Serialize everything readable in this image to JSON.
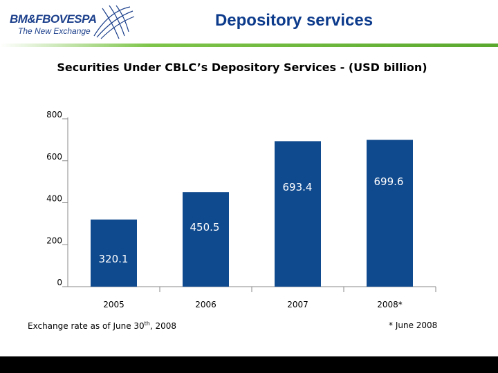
{
  "header": {
    "logo_name": "BM&FBOVESPA",
    "logo_tagline": "The New Exchange",
    "title": "Depository services"
  },
  "colors": {
    "bar": "#104a8e",
    "title": "#0d3b8c",
    "accent": "#5aa82e"
  },
  "chart_data": {
    "type": "bar",
    "title": "Securities Under CBLC’s Depository Services - (USD billion)",
    "categories": [
      "2005",
      "2006",
      "2007",
      "2008*"
    ],
    "values": [
      320.1,
      450.5,
      693.4,
      699.6
    ],
    "value_labels": [
      "320.1",
      "450.5",
      "693.4",
      "699.6"
    ],
    "yticks": [
      0,
      200,
      400,
      600,
      800
    ],
    "ylim": [
      0,
      800
    ],
    "xlabel": "",
    "ylabel": ""
  },
  "footer": {
    "note_left_main": "Exchange rate as of June 30",
    "note_left_sup": "th",
    "note_left_tail": ", 2008",
    "note_right": "* June 2008"
  }
}
